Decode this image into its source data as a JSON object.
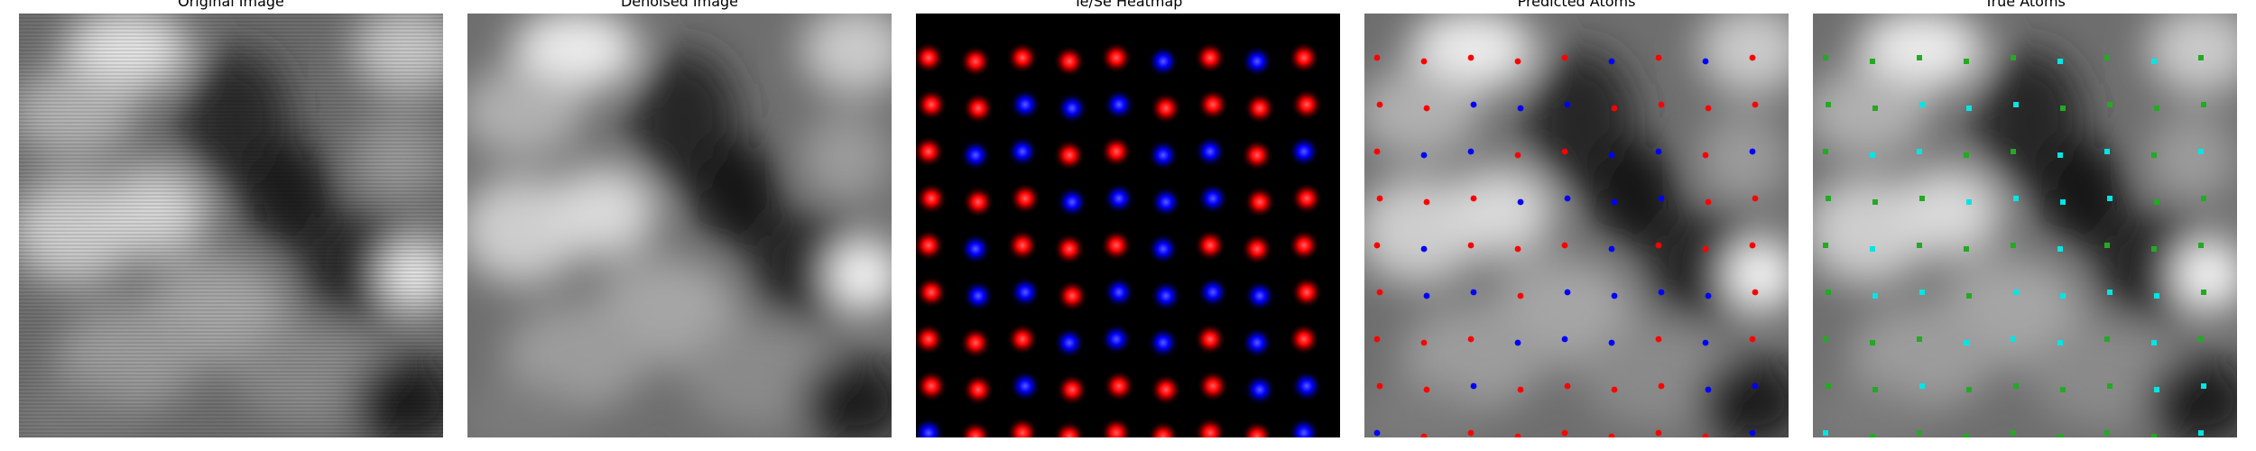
{
  "panels": [
    {
      "title": "Original Image"
    },
    {
      "title": "Denoised Image"
    },
    {
      "title": "Te/Se Heatmap"
    },
    {
      "title": "Predicted Atoms"
    },
    {
      "title": "True Atoms"
    }
  ],
  "colors": {
    "te": "#ff0000",
    "se": "#0000ff",
    "true_a": "#22aa22",
    "true_b": "#00e5e5"
  }
}
